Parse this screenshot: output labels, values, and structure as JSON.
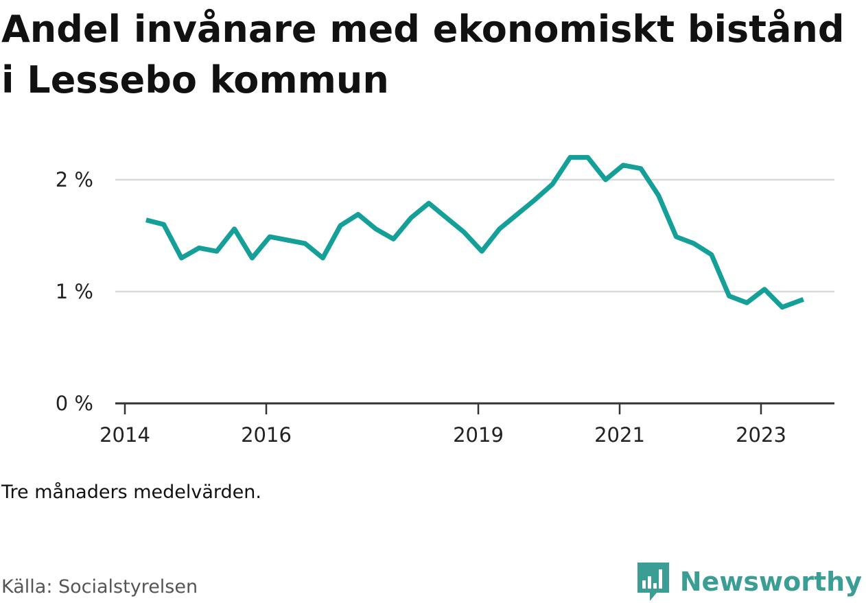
{
  "title": "Andel invånare med ekonomiskt bistånd i Lessebo kommun",
  "note": "Tre månaders medelvärden.",
  "source": "Källa: Socialstyrelsen",
  "brand": {
    "name": "Newsworthy",
    "icon": "bar-chart-speech-bubble-icon",
    "color": "#3a9e94"
  },
  "colors": {
    "line": "#14a098",
    "grid": "#d9d9d9",
    "axis": "#333333"
  },
  "chart_data": {
    "type": "line",
    "title": "Andel invånare med ekonomiskt bistånd i Lessebo kommun",
    "xlabel": "",
    "ylabel": "",
    "ylim": [
      0,
      2.5
    ],
    "xlim": [
      2013.9,
      2024.0
    ],
    "yticks": [
      {
        "value": 0,
        "label": "0 %"
      },
      {
        "value": 1,
        "label": "1 %"
      },
      {
        "value": 2,
        "label": "2 %"
      }
    ],
    "xticks": [
      {
        "value": 2014.0,
        "label": "2014"
      },
      {
        "value": 2016.0,
        "label": "2016"
      },
      {
        "value": 2019.0,
        "label": "2019"
      },
      {
        "value": 2021.0,
        "label": "2021"
      },
      {
        "value": 2023.0,
        "label": "2023"
      }
    ],
    "grid": true,
    "series": [
      {
        "x": [
          2014.3,
          2014.55,
          2014.8,
          2015.05,
          2015.3,
          2015.55,
          2015.8,
          2016.05,
          2016.3,
          2016.55,
          2016.8,
          2017.05,
          2017.3,
          2017.55,
          2017.8,
          2018.05,
          2018.3,
          2018.55,
          2018.8,
          2019.05,
          2019.3,
          2019.55,
          2019.8,
          2020.05,
          2020.3,
          2020.55,
          2020.8,
          2021.05,
          2021.3,
          2021.55,
          2021.8,
          2022.05,
          2022.3,
          2022.55,
          2022.8,
          2023.05,
          2023.3,
          2023.6
        ],
        "y": [
          1.64,
          1.6,
          1.3,
          1.39,
          1.36,
          1.56,
          1.3,
          1.49,
          1.46,
          1.43,
          1.3,
          1.59,
          1.69,
          1.56,
          1.47,
          1.66,
          1.79,
          1.66,
          1.53,
          1.36,
          1.56,
          1.69,
          1.82,
          1.96,
          2.2,
          2.2,
          2.0,
          2.13,
          2.1,
          1.86,
          1.49,
          1.43,
          1.33,
          0.96,
          0.9,
          1.02,
          0.86,
          0.93
        ]
      }
    ]
  }
}
